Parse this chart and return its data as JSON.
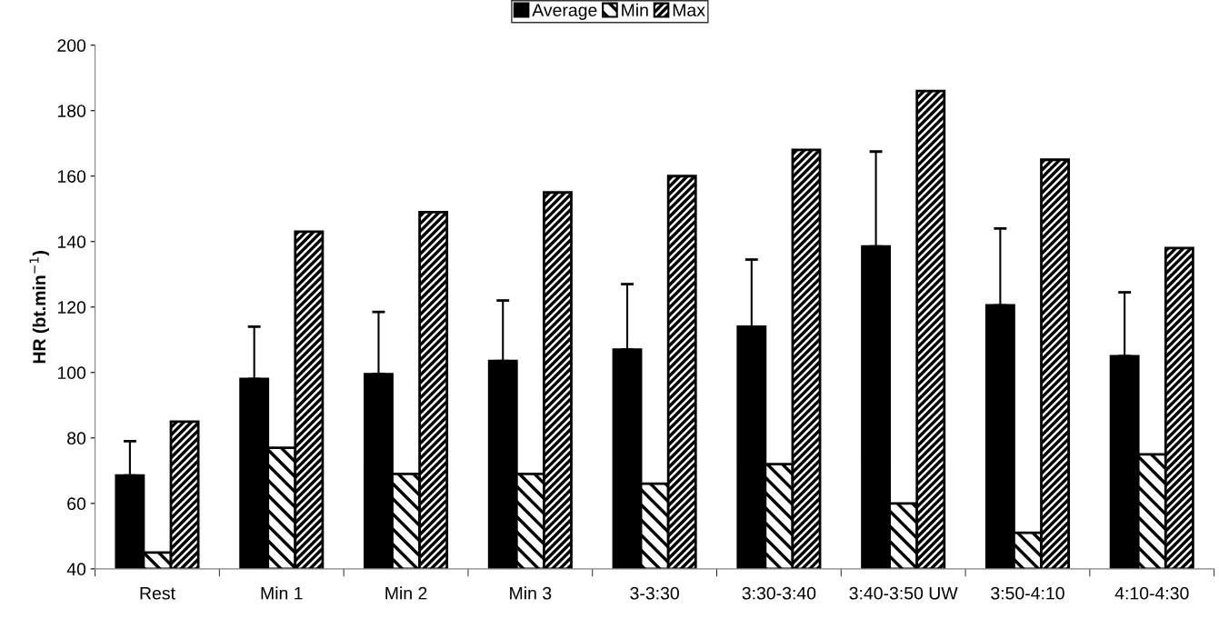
{
  "chart_data": {
    "type": "bar",
    "ylabel": "HR (bt.min$^{−1}$)",
    "categories": [
      "Rest",
      "Min 1",
      "Min 2",
      "Min 3",
      "3-3:30",
      "3:30-3:40",
      "3:40-3:50 UW",
      "3:50-4:10",
      "4:10-4:30"
    ],
    "series": [
      {
        "name": "Average",
        "color": "#000000",
        "values": [
          68.5,
          98,
          99.5,
          103.5,
          107,
          114,
          138.5,
          120.5,
          105
        ],
        "errors": [
          [
            68.5,
            79
          ],
          [
            98,
            114
          ],
          [
            99.5,
            118.5
          ],
          [
            103.5,
            122
          ],
          [
            107,
            127
          ],
          [
            114,
            134.5
          ],
          [
            138.5,
            167.5
          ],
          [
            120.5,
            144
          ],
          [
            105,
            124.5
          ]
        ]
      },
      {
        "name": "Min",
        "color": "#000000",
        "values": [
          45,
          77,
          69,
          69,
          66,
          72,
          60,
          51,
          75
        ]
      },
      {
        "name": "Max",
        "color": "#000000",
        "values": [
          85,
          143,
          149,
          155,
          160,
          168,
          186,
          165,
          138
        ]
      }
    ],
    "ylim": [
      40,
      200
    ],
    "yticks": [
      40,
      60,
      80,
      100,
      120,
      140,
      160,
      180,
      200
    ],
    "grid": false,
    "legend": "top"
  }
}
